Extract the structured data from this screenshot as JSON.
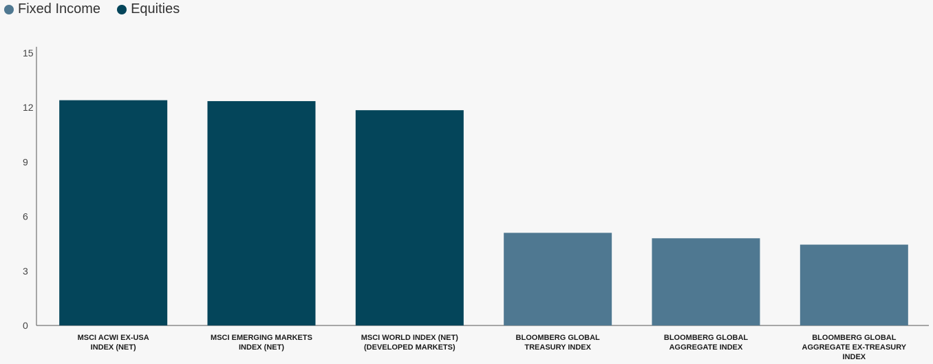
{
  "legend": {
    "items": [
      {
        "label": "Fixed Income",
        "color": "#4f7891"
      },
      {
        "label": "Equities",
        "color": "#04455a"
      }
    ]
  },
  "chart_data": {
    "type": "bar",
    "categories": [
      [
        "MSCI ACWI EX-USA",
        "INDEX (NET)"
      ],
      [
        "MSCI EMERGING MARKETS",
        "INDEX (NET)"
      ],
      [
        "MSCI WORLD INDEX (NET)",
        "(DEVELOPED MARKETS)"
      ],
      [
        "BLOOMBERG GLOBAL",
        "TREASURY INDEX"
      ],
      [
        "BLOOMBERG GLOBAL",
        "AGGREGATE INDEX"
      ],
      [
        "BLOOMBERG GLOBAL",
        "AGGREGATE EX-TREASURY",
        "INDEX"
      ]
    ],
    "values": [
      12.4,
      12.35,
      11.85,
      5.1,
      4.8,
      4.45
    ],
    "groups": [
      "Equities",
      "Equities",
      "Equities",
      "Fixed Income",
      "Fixed Income",
      "Fixed Income"
    ],
    "colors": {
      "Equities": "#04455a",
      "Fixed Income": "#4f7891"
    },
    "yticks": [
      0,
      3,
      6,
      9,
      12,
      15
    ],
    "ylim": [
      0,
      15
    ],
    "title": "",
    "xlabel": "",
    "ylabel": "",
    "legend_position": "top-left",
    "grid": false
  }
}
